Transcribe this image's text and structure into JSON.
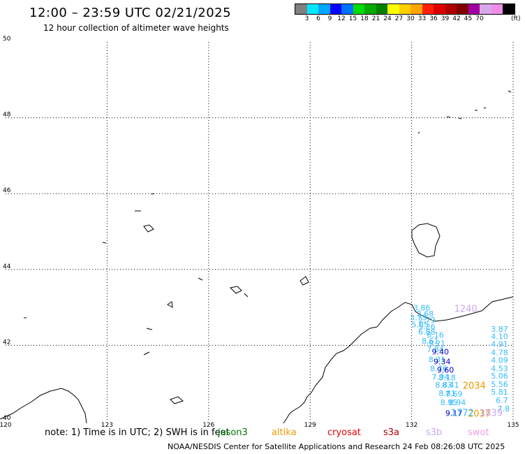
{
  "header": {
    "title": "12:00 – 23:59 UTC 02/21/2025",
    "subtitle": "12 hour collection of altimeter wave heights"
  },
  "legend": {
    "colors": [
      "#808080",
      "#00e8ff",
      "#00a8ff",
      "#0000ff",
      "#0070ff",
      "#00dd00",
      "#00aa00",
      "#008000",
      "#ffff00",
      "#ffd000",
      "#ffa500",
      "#ff2000",
      "#dd0000",
      "#b00000",
      "#800000",
      "#a000a0",
      "#d8a8e8",
      "#ee8ee8",
      "#000000"
    ],
    "ticks": [
      "3",
      "6",
      "9",
      "12",
      "15",
      "18",
      "21",
      "24",
      "27",
      "30",
      "33",
      "36",
      "39",
      "42",
      "45",
      "70"
    ],
    "unit": "(ft)"
  },
  "axes": {
    "x_ticks": [
      "120",
      "123",
      "126",
      "129",
      "132",
      "135"
    ],
    "y_ticks": [
      "40",
      "42",
      "44",
      "46",
      "48",
      "50"
    ],
    "x_values": [
      120,
      123,
      126,
      129,
      132,
      135
    ],
    "y_values": [
      40,
      42,
      44,
      46,
      48,
      50
    ]
  },
  "readings": [
    {
      "text": "3.86",
      "color": "#33bbff",
      "lon": 132.3,
      "lat": 42.92
    },
    {
      "text": "2.68",
      "color": "#33bbff",
      "lon": 132.4,
      "lat": 42.76
    },
    {
      "text": "3.73",
      "color": "#33bbff",
      "lon": 132.2,
      "lat": 42.66
    },
    {
      "text": "2.79",
      "color": "#33bbff",
      "lon": 132.45,
      "lat": 42.6
    },
    {
      "text": "5.85",
      "color": "#33bbff",
      "lon": 132.25,
      "lat": 42.48
    },
    {
      "text": "5.26",
      "color": "#33bbff",
      "lon": 132.45,
      "lat": 42.42
    },
    {
      "text": "6.88",
      "color": "#33bbff",
      "lon": 132.45,
      "lat": 42.28
    },
    {
      "text": "6.16",
      "color": "#33bbff",
      "lon": 132.7,
      "lat": 42.2
    },
    {
      "text": "8.61",
      "color": "#33bbff",
      "lon": 132.55,
      "lat": 42.04
    },
    {
      "text": "9.21",
      "color": "#33bbff",
      "lon": 132.75,
      "lat": 41.98
    },
    {
      "text": "7.84",
      "color": "#33bbff",
      "lon": 132.7,
      "lat": 41.82
    },
    {
      "text": "9.40",
      "color": "#0000cc",
      "lon": 132.85,
      "lat": 41.76
    },
    {
      "text": "8.31",
      "color": "#33bbff",
      "lon": 132.75,
      "lat": 41.56
    },
    {
      "text": "9.34",
      "color": "#0000cc",
      "lon": 132.9,
      "lat": 41.5
    },
    {
      "text": "8.76",
      "color": "#33bbff",
      "lon": 132.8,
      "lat": 41.32
    },
    {
      "text": "9.60",
      "color": "#0000cc",
      "lon": 133.0,
      "lat": 41.28
    },
    {
      "text": "7.94",
      "color": "#33bbff",
      "lon": 132.85,
      "lat": 41.1
    },
    {
      "text": "8.18",
      "color": "#33bbff",
      "lon": 133.05,
      "lat": 41.08
    },
    {
      "text": "8.83",
      "color": "#33bbff",
      "lon": 132.95,
      "lat": 40.88
    },
    {
      "text": "8.41",
      "color": "#33bbff",
      "lon": 133.15,
      "lat": 40.88
    },
    {
      "text": "8.81",
      "color": "#33bbff",
      "lon": 133.05,
      "lat": 40.66
    },
    {
      "text": "7.69",
      "color": "#33bbff",
      "lon": 133.25,
      "lat": 40.64
    },
    {
      "text": "8.95",
      "color": "#33bbff",
      "lon": 133.1,
      "lat": 40.42
    },
    {
      "text": "8.94",
      "color": "#33bbff",
      "lon": 133.35,
      "lat": 40.42
    },
    {
      "text": "9.17",
      "color": "#0000cc",
      "lon": 133.25,
      "lat": 40.14
    },
    {
      "text": "3.87",
      "color": "#33bbff",
      "lon": 134.85,
      "lat": 42.36
    },
    {
      "text": "4.10",
      "color": "#33bbff",
      "lon": 134.85,
      "lat": 42.16
    },
    {
      "text": "4.91",
      "color": "#33bbff",
      "lon": 134.85,
      "lat": 41.96
    },
    {
      "text": "4.78",
      "color": "#33bbff",
      "lon": 134.85,
      "lat": 41.74
    },
    {
      "text": "4.09",
      "color": "#33bbff",
      "lon": 134.85,
      "lat": 41.54
    },
    {
      "text": "4.53",
      "color": "#33bbff",
      "lon": 134.85,
      "lat": 41.32
    },
    {
      "text": "5.06",
      "color": "#33bbff",
      "lon": 134.85,
      "lat": 41.12
    },
    {
      "text": "5.56",
      "color": "#33bbff",
      "lon": 134.85,
      "lat": 40.9
    },
    {
      "text": "5.81",
      "color": "#33bbff",
      "lon": 134.85,
      "lat": 40.7
    },
    {
      "text": "6.7",
      "color": "#33bbff",
      "lon": 134.85,
      "lat": 40.48
    },
    {
      "text": "7.8",
      "color": "#33bbff",
      "lon": 134.9,
      "lat": 40.26
    }
  ],
  "track_labels": [
    {
      "text": "1240",
      "color": "#c8a8ec",
      "lon": 133.6,
      "lat": 42.88
    },
    {
      "text": "2034",
      "color": "#ee9900",
      "lon": 133.85,
      "lat": 40.86
    },
    {
      "text": "2037",
      "color": "#ee9900",
      "lon": 134.0,
      "lat": 40.12
    },
    {
      "text": "1772",
      "color": "#33bbff",
      "lon": 133.5,
      "lat": 40.14
    },
    {
      "text": "1839",
      "color": "#c8a8ec",
      "lon": 134.35,
      "lat": 40.14
    }
  ],
  "footer": {
    "note": "note:  1) Time is in UTC; 2) SWH is in feet",
    "satellites": [
      {
        "name": "jason3",
        "color": "#007700",
        "left": 312
      },
      {
        "name": "altika",
        "color": "#ee9900",
        "left": 389
      },
      {
        "name": "cryosat",
        "color": "#ee0000",
        "left": 469
      },
      {
        "name": "s3a",
        "color": "#aa0000",
        "left": 549
      },
      {
        "name": "s3b",
        "color": "#c8a8ec",
        "left": 610
      },
      {
        "name": "swot",
        "color": "#f0a0e0",
        "left": 670
      }
    ],
    "credit": "NOAA/NESDIS Center for Satellite Applications and Research     24 Feb 08:26:08 UTC 2025"
  }
}
